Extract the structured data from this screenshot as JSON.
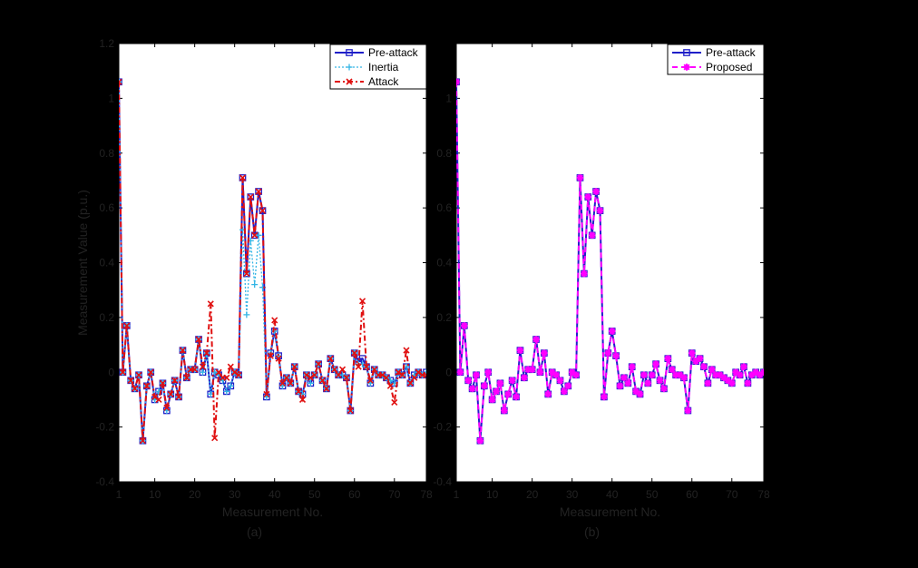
{
  "chart_data": [
    {
      "type": "line",
      "panel_label": "(a)",
      "xlabel": "Measurement No.",
      "ylabel": "Measurement Value (p.u.)",
      "xlim": [
        1,
        78
      ],
      "ylim": [
        -0.4,
        1.2
      ],
      "xticks": [
        1,
        10,
        20,
        30,
        40,
        50,
        60,
        70,
        78
      ],
      "yticks": [
        -0.4,
        -0.2,
        0,
        0.2,
        0.4,
        0.6,
        0.8,
        1,
        1.2
      ],
      "ytick_labels": [
        "-0.4",
        "-0.2",
        "0",
        "0.2",
        "0.4",
        "0.6",
        "0.8",
        "1",
        "1.2"
      ],
      "legend_position": "top-right",
      "series": [
        {
          "name": "Pre-attack",
          "color": "#1f1fc8",
          "values": [
            1.06,
            0,
            0.17,
            -0.03,
            -0.06,
            -0.01,
            -0.25,
            -0.05,
            0,
            -0.1,
            -0.07,
            -0.04,
            -0.14,
            -0.08,
            -0.03,
            -0.09,
            0.08,
            -0.02,
            0.01,
            0.01,
            0.12,
            0,
            0.07,
            -0.08,
            0,
            -0.01,
            -0.03,
            -0.07,
            -0.05,
            0,
            -0.01,
            0.71,
            0.36,
            0.64,
            0.5,
            0.66,
            0.59,
            -0.09,
            0.07,
            0.15,
            0.06,
            -0.05,
            -0.02,
            -0.04,
            0.02,
            -0.07,
            -0.08,
            -0.01,
            -0.04,
            -0.01,
            0.03,
            -0.03,
            -0.06,
            0.05,
            0.01,
            -0.01,
            -0.01,
            -0.02,
            -0.14,
            0.07,
            0.04,
            0.05,
            0.02,
            -0.04,
            0.01,
            -0.01,
            -0.01,
            -0.02,
            -0.03,
            -0.04,
            0,
            -0.01,
            0.02,
            -0.04,
            -0.01,
            0,
            -0.01,
            0
          ]
        },
        {
          "name": "Inertia",
          "color": "#33b5e5",
          "values": [
            1.06,
            0,
            0.17,
            -0.03,
            -0.06,
            -0.01,
            -0.25,
            -0.05,
            0,
            -0.1,
            -0.07,
            -0.04,
            -0.14,
            -0.08,
            -0.03,
            -0.09,
            0.08,
            -0.02,
            0.01,
            0.01,
            0.12,
            0,
            0.07,
            -0.08,
            0,
            -0.01,
            -0.03,
            -0.07,
            -0.05,
            0,
            -0.01,
            0.52,
            0.21,
            0.48,
            0.32,
            0.5,
            0.31,
            -0.09,
            0.07,
            0.15,
            0.06,
            -0.05,
            -0.02,
            -0.04,
            0.02,
            -0.07,
            -0.08,
            -0.01,
            -0.04,
            -0.01,
            0.03,
            -0.03,
            -0.06,
            0.05,
            0.01,
            -0.01,
            -0.01,
            -0.02,
            -0.14,
            0.07,
            0.03,
            0.03,
            0.02,
            -0.04,
            0.01,
            -0.01,
            -0.01,
            -0.02,
            -0.03,
            -0.04,
            0,
            -0.01,
            0.02,
            -0.04,
            -0.01,
            0,
            -0.01,
            0
          ]
        },
        {
          "name": "Attack",
          "color": "#e01010",
          "values": [
            1.06,
            0,
            0.17,
            -0.03,
            -0.06,
            -0.01,
            -0.25,
            -0.05,
            0,
            -0.09,
            -0.1,
            -0.04,
            -0.13,
            -0.08,
            -0.03,
            -0.09,
            0.08,
            -0.02,
            0.01,
            0.01,
            0.12,
            0.02,
            0.07,
            0.25,
            -0.24,
            0,
            -0.02,
            -0.02,
            0.02,
            0,
            -0.01,
            0.71,
            0.36,
            0.64,
            0.5,
            0.66,
            0.59,
            -0.08,
            0.06,
            0.19,
            0.05,
            -0.04,
            -0.02,
            -0.04,
            0.02,
            -0.07,
            -0.1,
            -0.01,
            -0.02,
            -0.01,
            0.03,
            -0.03,
            -0.06,
            0.05,
            0.01,
            -0.01,
            0.01,
            -0.02,
            -0.14,
            0.07,
            0.02,
            0.26,
            0.02,
            -0.03,
            0.01,
            -0.01,
            -0.01,
            -0.02,
            -0.05,
            -0.11,
            0,
            -0.01,
            0.08,
            -0.04,
            -0.02,
            0,
            -0.01,
            -0.01
          ]
        }
      ]
    },
    {
      "type": "line",
      "panel_label": "(b)",
      "xlabel": "Measurement No.",
      "ylabel": "",
      "xlim": [
        1,
        78
      ],
      "ylim": [
        -0.4,
        1.2
      ],
      "xticks": [
        1,
        10,
        20,
        30,
        40,
        50,
        60,
        70,
        78
      ],
      "yticks": [
        -0.4,
        -0.2,
        0,
        0.2,
        0.4,
        0.6,
        0.8,
        1,
        1.2
      ],
      "ytick_labels": [
        "-0.4",
        "-0.2",
        "0",
        "0.2",
        "0.4",
        "0.6",
        "0.8",
        "1",
        ""
      ],
      "legend_position": "top-right",
      "series": [
        {
          "name": "Pre-attack",
          "color": "#1f1fc8",
          "values": [
            1.06,
            0,
            0.17,
            -0.03,
            -0.06,
            -0.01,
            -0.25,
            -0.05,
            0,
            -0.1,
            -0.07,
            -0.04,
            -0.14,
            -0.08,
            -0.03,
            -0.09,
            0.08,
            -0.02,
            0.01,
            0.01,
            0.12,
            0,
            0.07,
            -0.08,
            0,
            -0.01,
            -0.03,
            -0.07,
            -0.05,
            0,
            -0.01,
            0.71,
            0.36,
            0.64,
            0.5,
            0.66,
            0.59,
            -0.09,
            0.07,
            0.15,
            0.06,
            -0.05,
            -0.02,
            -0.04,
            0.02,
            -0.07,
            -0.08,
            -0.01,
            -0.04,
            -0.01,
            0.03,
            -0.03,
            -0.06,
            0.05,
            0.01,
            -0.01,
            -0.01,
            -0.02,
            -0.14,
            0.07,
            0.04,
            0.05,
            0.02,
            -0.04,
            0.01,
            -0.01,
            -0.01,
            -0.02,
            -0.03,
            -0.04,
            0,
            -0.01,
            0.02,
            -0.04,
            -0.01,
            0,
            -0.01,
            0
          ]
        },
        {
          "name": "Proposed",
          "color": "#ff00ff",
          "values": [
            1.06,
            0,
            0.17,
            -0.03,
            -0.06,
            -0.01,
            -0.25,
            -0.05,
            0,
            -0.1,
            -0.07,
            -0.04,
            -0.14,
            -0.08,
            -0.03,
            -0.09,
            0.08,
            -0.02,
            0.01,
            0.01,
            0.12,
            0,
            0.07,
            -0.08,
            0,
            -0.01,
            -0.03,
            -0.07,
            -0.05,
            0,
            -0.01,
            0.71,
            0.36,
            0.64,
            0.5,
            0.66,
            0.59,
            -0.09,
            0.07,
            0.15,
            0.06,
            -0.05,
            -0.02,
            -0.04,
            0.02,
            -0.07,
            -0.08,
            -0.01,
            -0.04,
            -0.01,
            0.03,
            -0.03,
            -0.06,
            0.05,
            0.01,
            -0.01,
            -0.01,
            -0.02,
            -0.14,
            0.07,
            0.04,
            0.05,
            0.02,
            -0.04,
            0.01,
            -0.01,
            -0.01,
            -0.02,
            -0.03,
            -0.04,
            0,
            -0.01,
            0.02,
            -0.04,
            -0.01,
            0,
            -0.01,
            0
          ]
        }
      ]
    }
  ]
}
